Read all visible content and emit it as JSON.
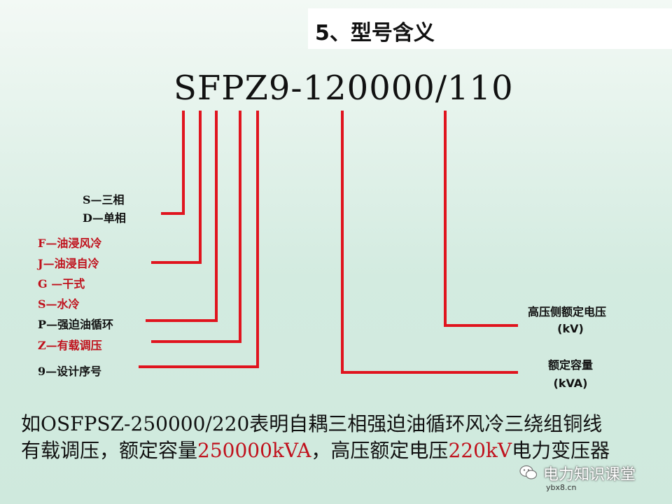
{
  "slide": {
    "title": "5、型号含义",
    "model_code": "SFPZ9-120000/110",
    "left_labels": [
      {
        "text": "S—三相"
      },
      {
        "text": "D—单相"
      },
      {
        "text": "F—油浸风冷"
      },
      {
        "text": "J—油浸自冷"
      },
      {
        "text": "G —干式"
      },
      {
        "text": "S—水冷"
      },
      {
        "text": "P—强迫油循环"
      },
      {
        "text": "Z—有载调压"
      },
      {
        "text": "9—设计序号"
      }
    ],
    "right_labels": {
      "voltage_line1": "高压侧额定电压",
      "voltage_line2": "(kV)",
      "capacity_line1": "额定容量",
      "capacity_line2": "(kVA)"
    },
    "example": {
      "line1": "如OSFPSZ-250000/220表明自耦三相强迫油循环风冷三绕组铜线",
      "line2_a": "有载调压，额定容量",
      "line2_b": "250000kVA",
      "line2_c": "，高压额定电压",
      "line2_d": "220kV",
      "line2_e": "电力变压器"
    },
    "watermark": {
      "channel": "电力知识课堂",
      "site": "ybx8.cn"
    },
    "colors": {
      "line": "#e0141e",
      "highlight": "#c0111c"
    }
  }
}
